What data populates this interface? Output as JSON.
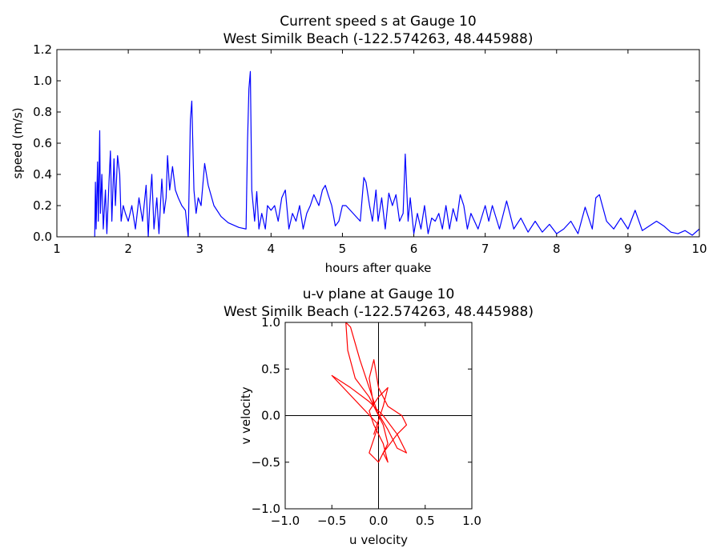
{
  "chart_data": [
    {
      "type": "line",
      "title": "Current speed s at Gauge 10",
      "subtitle": "West Similk Beach  (-122.574263, 48.445988)",
      "x_label": "hours after quake",
      "y_label": "speed (m/s)",
      "xlim": [
        1,
        10
      ],
      "xticks": [
        1,
        2,
        3,
        4,
        5,
        6,
        7,
        8,
        9,
        10
      ],
      "ylim": [
        0,
        1.2
      ],
      "yticks": [
        {
          "value": 0,
          "label": "0.0"
        },
        0.2,
        0.4,
        0.6,
        0.8,
        {
          "value": 1,
          "label": "1.0"
        },
        1.2
      ],
      "color": "#0000ff",
      "x": [
        1.53,
        1.54,
        1.55,
        1.57,
        1.58,
        1.6,
        1.61,
        1.63,
        1.65,
        1.68,
        1.7,
        1.73,
        1.75,
        1.77,
        1.8,
        1.82,
        1.85,
        1.88,
        1.9,
        1.93,
        1.96,
        2.0,
        2.05,
        2.1,
        2.15,
        2.2,
        2.25,
        2.28,
        2.3,
        2.33,
        2.36,
        2.4,
        2.43,
        2.47,
        2.5,
        2.53,
        2.55,
        2.58,
        2.62,
        2.66,
        2.7,
        2.75,
        2.8,
        2.84,
        2.87,
        2.89,
        2.92,
        2.95,
        2.98,
        3.02,
        3.07,
        3.12,
        3.2,
        3.3,
        3.4,
        3.55,
        3.65,
        3.67,
        3.69,
        3.71,
        3.73,
        3.77,
        3.8,
        3.83,
        3.87,
        3.92,
        3.95,
        4.0,
        4.05,
        4.1,
        4.15,
        4.2,
        4.25,
        4.3,
        4.35,
        4.4,
        4.45,
        4.5,
        4.55,
        4.6,
        4.67,
        4.72,
        4.76,
        4.8,
        4.85,
        4.9,
        4.95,
        5.0,
        5.05,
        5.15,
        5.25,
        5.3,
        5.33,
        5.38,
        5.42,
        5.47,
        5.5,
        5.55,
        5.6,
        5.65,
        5.7,
        5.75,
        5.8,
        5.85,
        5.88,
        5.92,
        5.95,
        6.0,
        6.05,
        6.1,
        6.15,
        6.2,
        6.25,
        6.3,
        6.35,
        6.4,
        6.45,
        6.5,
        6.55,
        6.6,
        6.65,
        6.7,
        6.75,
        6.8,
        6.9,
        7.0,
        7.05,
        7.1,
        7.2,
        7.3,
        7.4,
        7.5,
        7.6,
        7.7,
        7.8,
        7.9,
        8.0,
        8.1,
        8.2,
        8.3,
        8.4,
        8.5,
        8.55,
        8.6,
        8.7,
        8.8,
        8.9,
        9.0,
        9.1,
        9.2,
        9.3,
        9.4,
        9.5,
        9.6,
        9.7,
        9.8,
        9.9,
        10.0
      ],
      "values": [
        0,
        0.35,
        0.05,
        0.48,
        0.1,
        0.68,
        0.15,
        0.4,
        0.05,
        0.3,
        0.02,
        0.35,
        0.55,
        0.1,
        0.5,
        0.2,
        0.52,
        0.4,
        0.1,
        0.2,
        0.15,
        0.1,
        0.2,
        0.05,
        0.25,
        0.1,
        0.33,
        0,
        0.2,
        0.4,
        0.05,
        0.25,
        0.02,
        0.37,
        0.15,
        0.25,
        0.52,
        0.3,
        0.45,
        0.3,
        0.25,
        0.2,
        0.17,
        0,
        0.75,
        0.87,
        0.3,
        0.15,
        0.25,
        0.2,
        0.47,
        0.33,
        0.2,
        0.13,
        0.09,
        0.06,
        0.05,
        0.6,
        0.95,
        1.06,
        0.3,
        0.1,
        0.29,
        0.05,
        0.15,
        0.05,
        0.2,
        0.17,
        0.2,
        0.1,
        0.25,
        0.3,
        0.05,
        0.15,
        0.1,
        0.2,
        0.05,
        0.15,
        0.2,
        0.27,
        0.2,
        0.3,
        0.33,
        0.27,
        0.2,
        0.07,
        0.1,
        0.2,
        0.2,
        0.15,
        0.1,
        0.38,
        0.35,
        0.2,
        0.1,
        0.3,
        0.1,
        0.25,
        0.05,
        0.28,
        0.2,
        0.27,
        0.1,
        0.15,
        0.53,
        0.1,
        0.25,
        0.02,
        0.15,
        0.05,
        0.2,
        0.02,
        0.12,
        0.1,
        0.15,
        0.05,
        0.2,
        0.05,
        0.18,
        0.1,
        0.27,
        0.2,
        0.05,
        0.15,
        0.05,
        0.2,
        0.1,
        0.2,
        0.05,
        0.23,
        0.05,
        0.12,
        0.03,
        0.1,
        0.03,
        0.08,
        0.02,
        0.05,
        0.1,
        0.02,
        0.19,
        0.05,
        0.25,
        0.27,
        0.1,
        0.05,
        0.12,
        0.05,
        0.17,
        0.04,
        0.07,
        0.1,
        0.07,
        0.03,
        0.02,
        0.04,
        0.01,
        0.05
      ]
    },
    {
      "type": "line",
      "title": "u-v plane at Gauge 10",
      "subtitle": "West Similk Beach  (-122.574263, 48.445988)",
      "x_label": "u velocity",
      "y_label": "v velocity",
      "xlim": [
        -1,
        1
      ],
      "xticks": [
        {
          "value": -1,
          "label": "−1.0"
        },
        {
          "value": -0.5,
          "label": "−0.5"
        },
        {
          "value": 0,
          "label": "0.0"
        },
        0.5,
        {
          "value": 1,
          "label": "1.0"
        }
      ],
      "ylim": [
        -1,
        1
      ],
      "yticks": [
        {
          "value": -1,
          "label": "−1.0"
        },
        {
          "value": -0.5,
          "label": "−0.5"
        },
        {
          "value": 0,
          "label": "0.0"
        },
        0.5,
        {
          "value": 1,
          "label": "1.0"
        }
      ],
      "color": "#ff0000",
      "zero_lines": true,
      "x": [
        0,
        -0.1,
        -0.2,
        -0.3,
        -0.35,
        -0.33,
        -0.25,
        -0.1,
        0.05,
        0.1,
        0,
        -0.1,
        0,
        -0.5,
        -0.3,
        -0.1,
        0.05,
        0.2,
        0.3,
        0.2,
        0.1,
        -0.05,
        -0.1,
        -0.05,
        0,
        0.1,
        0.25,
        0.3,
        0.2,
        0.05,
        0.1,
        0.05,
        -0.05,
        -0.1,
        0,
        0.1,
        0.05,
        -0.05,
        0,
        0.02
      ],
      "values": [
        0,
        0.3,
        0.6,
        0.95,
        1,
        0.7,
        0.4,
        0.2,
        -0.1,
        -0.3,
        -0.5,
        -0.4,
        -0.1,
        0.43,
        0.3,
        0.15,
        0,
        -0.2,
        -0.4,
        -0.35,
        -0.15,
        0.1,
        0.4,
        0.6,
        0.3,
        0.1,
        0,
        -0.1,
        -0.2,
        -0.4,
        -0.5,
        -0.3,
        -0.1,
        0.05,
        0.2,
        0.3,
        0.1,
        -0.2,
        -0.05,
        0
      ]
    }
  ]
}
